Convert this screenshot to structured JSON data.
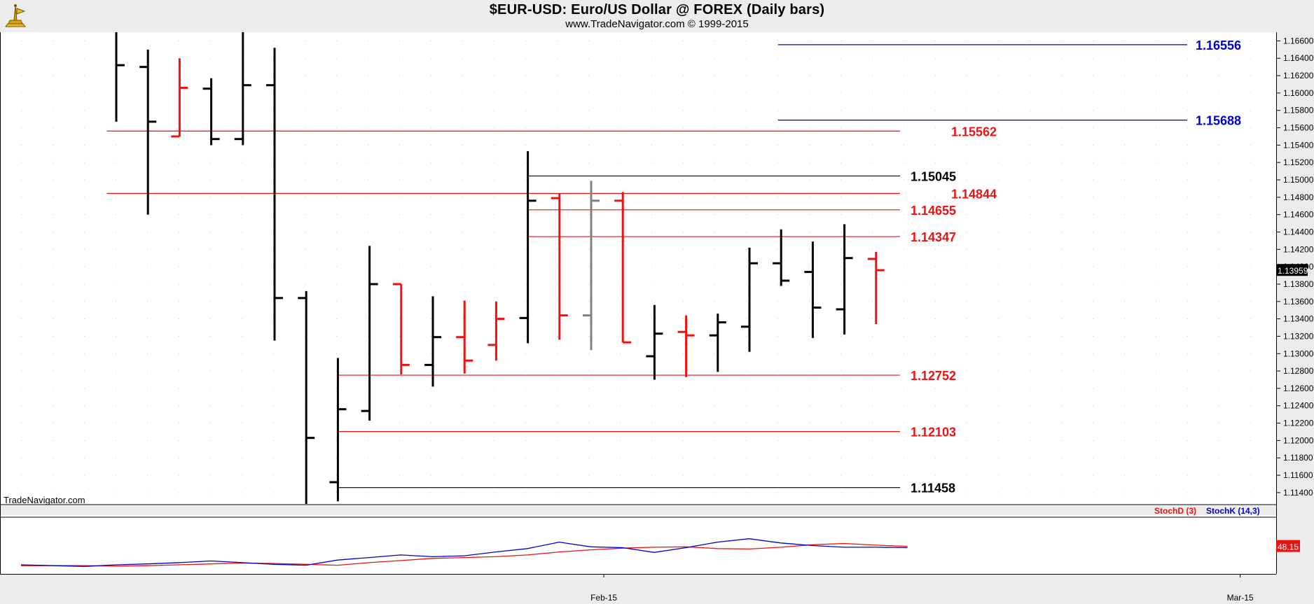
{
  "header": {
    "title": "$EUR-USD:  Euro/US Dollar @ FOREX  (Daily bars)",
    "subtitle": "www.TradeNavigator.com © 1999-2015"
  },
  "watermark": "TradeNavigator.com",
  "colors": {
    "up_bar": "#000000",
    "down_bar": "#ee1111",
    "neutral_bar": "#808080",
    "blue_level": "#0000cc",
    "red_level": "#ee1111",
    "black_level": "#000000",
    "stoch_d": "#ee1111",
    "stoch_k": "#0000cc"
  },
  "chart_data": [
    {
      "type": "ohlc",
      "title": "$EUR-USD:  Euro/US Dollar @ FOREX  (Daily bars)",
      "y_axis_ticks": [
        "1.16600",
        "1.16400",
        "1.16200",
        "1.16000",
        "1.15800",
        "1.15600",
        "1.15400",
        "1.15200",
        "1.15000",
        "1.14800",
        "1.14600",
        "1.14400",
        "1.14200",
        "1.14000",
        "1.13800",
        "1.13600",
        "1.13400",
        "1.13200",
        "1.13000",
        "1.12800",
        "1.12600",
        "1.12400",
        "1.12200",
        "1.12000",
        "1.11800",
        "1.11600",
        "1.11400"
      ],
      "ylim": [
        1.1127,
        1.167
      ],
      "x_axis_labels": [
        {
          "label": "Feb-15",
          "index": 15.4
        },
        {
          "label": "Mar-15",
          "index": 35.5
        }
      ],
      "last_price": "1.13959",
      "bars": [
        {
          "o": 1.168,
          "h": 1.168,
          "l": 1.1567,
          "c": 1.1632,
          "color": "up"
        },
        {
          "o": 1.163,
          "h": 1.165,
          "l": 1.146,
          "c": 1.1567,
          "color": "up"
        },
        {
          "o": 1.155,
          "h": 1.164,
          "l": 1.155,
          "c": 1.1606,
          "color": "down"
        },
        {
          "o": 1.1605,
          "h": 1.1617,
          "l": 1.154,
          "c": 1.1547,
          "color": "up"
        },
        {
          "o": 1.1547,
          "h": 1.168,
          "l": 1.154,
          "c": 1.1609,
          "color": "up"
        },
        {
          "o": 1.1609,
          "h": 1.1652,
          "l": 1.1315,
          "c": 1.1364,
          "color": "up"
        },
        {
          "o": 1.1364,
          "h": 1.1372,
          "l": 1.11,
          "c": 1.1203,
          "color": "up"
        },
        {
          "o": 1.1152,
          "h": 1.1295,
          "l": 1.113,
          "c": 1.1236,
          "color": "up"
        },
        {
          "o": 1.1234,
          "h": 1.1424,
          "l": 1.1223,
          "c": 1.138,
          "color": "up"
        },
        {
          "o": 1.138,
          "h": 1.138,
          "l": 1.1276,
          "c": 1.1287,
          "color": "down"
        },
        {
          "o": 1.1287,
          "h": 1.1366,
          "l": 1.1262,
          "c": 1.1319,
          "color": "up"
        },
        {
          "o": 1.1319,
          "h": 1.1361,
          "l": 1.1277,
          "c": 1.1292,
          "color": "down"
        },
        {
          "o": 1.131,
          "h": 1.136,
          "l": 1.1292,
          "c": 1.134,
          "color": "down"
        },
        {
          "o": 1.1341,
          "h": 1.1533,
          "l": 1.1312,
          "c": 1.1476,
          "color": "up"
        },
        {
          "o": 1.1479,
          "h": 1.1484,
          "l": 1.1316,
          "c": 1.1344,
          "color": "down"
        },
        {
          "o": 1.1344,
          "h": 1.1499,
          "l": 1.1304,
          "c": 1.1476,
          "color": "neutral"
        },
        {
          "o": 1.1476,
          "h": 1.1486,
          "l": 1.1313,
          "c": 1.1313,
          "color": "down"
        },
        {
          "o": 1.1297,
          "h": 1.1356,
          "l": 1.127,
          "c": 1.1323,
          "color": "up"
        },
        {
          "o": 1.1325,
          "h": 1.1344,
          "l": 1.1273,
          "c": 1.1321,
          "color": "down"
        },
        {
          "o": 1.1321,
          "h": 1.1346,
          "l": 1.1279,
          "c": 1.1336,
          "color": "up"
        },
        {
          "o": 1.1331,
          "h": 1.1422,
          "l": 1.1302,
          "c": 1.1404,
          "color": "up"
        },
        {
          "o": 1.1404,
          "h": 1.1443,
          "l": 1.1378,
          "c": 1.1384,
          "color": "up"
        },
        {
          "o": 1.1394,
          "h": 1.1429,
          "l": 1.1318,
          "c": 1.1353,
          "color": "up"
        },
        {
          "o": 1.1351,
          "h": 1.1449,
          "l": 1.1322,
          "c": 1.141,
          "color": "up"
        },
        {
          "o": 1.1409,
          "h": 1.1417,
          "l": 1.1334,
          "c": 1.1396,
          "color": "down"
        }
      ],
      "levels": [
        {
          "value": "1.16556",
          "color": "blue",
          "from_bar": 20.9
        },
        {
          "value": "1.15688",
          "color": "blue",
          "from_bar": 20.9
        },
        {
          "value": "1.15562",
          "color": "red",
          "from_bar": -0.3
        },
        {
          "value": "1.15045",
          "color": "black",
          "from_bar": 13.0
        },
        {
          "value": "1.14844",
          "color": "red",
          "from_bar": -0.3
        },
        {
          "value": "1.14655",
          "color": "red",
          "from_bar": 13.0
        },
        {
          "value": "1.14347",
          "color": "red",
          "from_bar": 13.0
        },
        {
          "value": "1.12752",
          "color": "red",
          "from_bar": 7.0
        },
        {
          "value": "1.12103",
          "color": "red",
          "from_bar": 7.0
        },
        {
          "value": "1.11458",
          "color": "black",
          "from_bar": 7.0
        }
      ]
    },
    {
      "type": "line",
      "title": "",
      "legend": [
        "StochD (3)",
        "StochK (14,3)"
      ],
      "last_value": "48.15",
      "ylim": [
        0,
        100
      ],
      "series": [
        {
          "name": "StochD (3)",
          "color": "red",
          "values": [
            3,
            3,
            3,
            2,
            3,
            5,
            7,
            9,
            8,
            6,
            4,
            10,
            15,
            20,
            22,
            24,
            28,
            35,
            40,
            44,
            46,
            47,
            43,
            42,
            46,
            52,
            55,
            51,
            48
          ]
        },
        {
          "name": "StochK (14,3)",
          "color": "blue",
          "values": [
            5,
            3,
            1,
            5,
            7,
            10,
            14,
            10,
            6,
            4,
            16,
            22,
            28,
            24,
            26,
            35,
            43,
            58,
            47,
            45,
            34,
            45,
            58,
            66,
            56,
            50,
            46,
            46,
            45
          ]
        }
      ]
    }
  ]
}
